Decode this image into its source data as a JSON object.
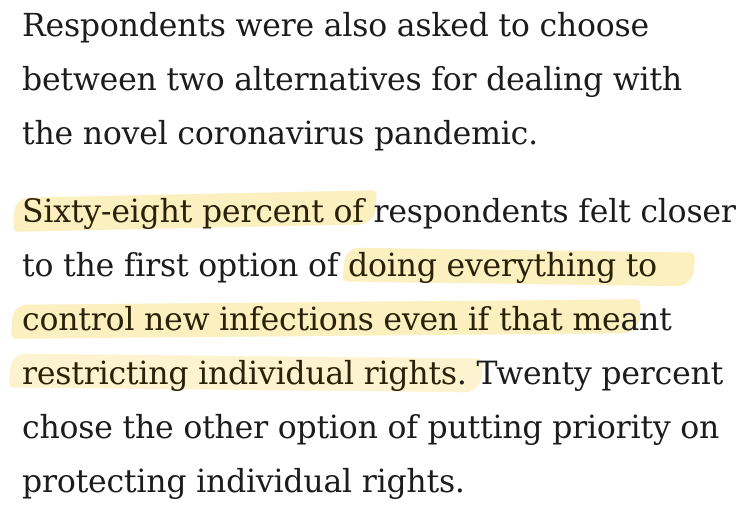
{
  "paragraphs": [
    {
      "lines": [
        "Respondents were also asked to choose",
        "between two alternatives for dealing with",
        "the novel coronavirus pandemic."
      ]
    },
    {
      "lines": [
        {
          "highlighted": "Sixty-eight percent of",
          "rest": " respondents felt closer"
        },
        {
          "plain": "to the first option of ",
          "highlighted": "doing everything to"
        },
        {
          "highlighted": "control new infections even if that me",
          "rest": "ant"
        },
        {
          "highlighted": "restricting individual rights",
          "rest": ". Twenty percent"
        },
        "chose the other option of putting priority on",
        "protecting individual rights."
      ]
    }
  ],
  "colors": {
    "text": "#1c1c1c",
    "highlight": "#fae28c",
    "background": "#ffffff"
  }
}
